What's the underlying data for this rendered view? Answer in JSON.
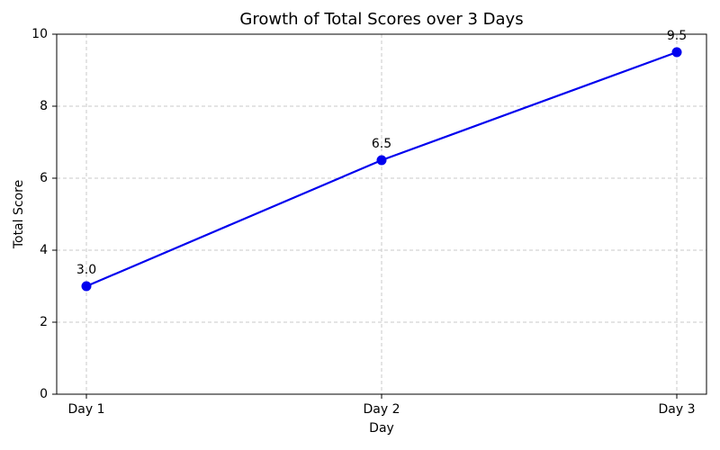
{
  "chart_data": {
    "type": "line",
    "title": "Growth of Total Scores over 3 Days",
    "x_label": "Day",
    "y_label": "Total Score",
    "categories": [
      "Day 1",
      "Day 2",
      "Day 3"
    ],
    "series": [
      {
        "name": "Total Score",
        "color": "#0000ee",
        "values": [
          3,
          6.5,
          9.5
        ],
        "value_labels": [
          "3.0",
          "6.5",
          "9.5"
        ]
      }
    ],
    "ylim": [
      0,
      10
    ],
    "yticks": [
      0,
      2,
      4,
      6,
      8,
      10
    ],
    "grid": true
  }
}
